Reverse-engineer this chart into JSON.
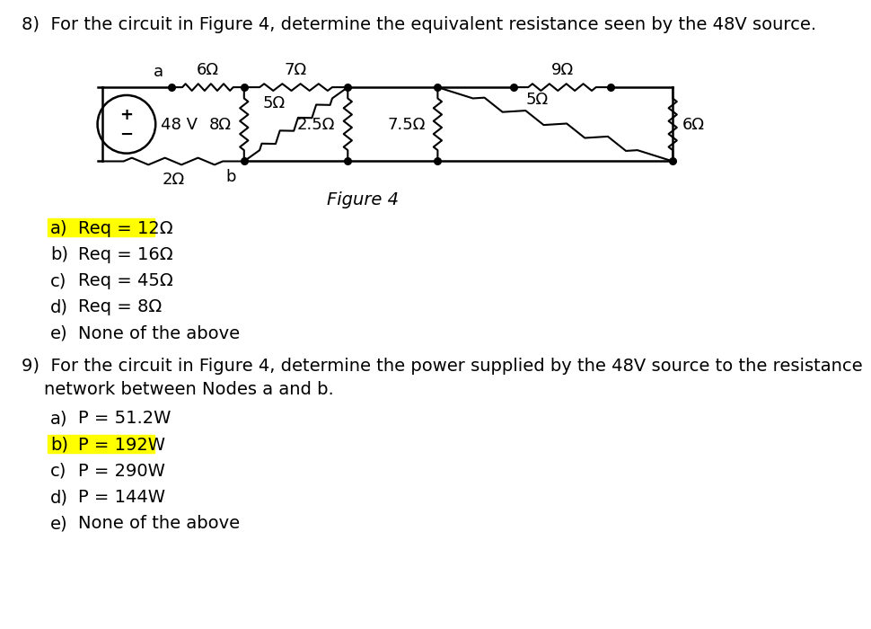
{
  "title_q8": "8)  For the circuit in Figure 4, determine the equivalent resistance seen by the 48V source.",
  "title_q9_line1": "9)  For the circuit in Figure 4, determine the power supplied by the 48V source to the resistance",
  "title_q9_line2": "    network between Nodes a and b.",
  "figure_caption": "Figure 4",
  "q8_options": [
    {
      "label": "a)",
      "text": "Req = 12Ω",
      "highlight": true
    },
    {
      "label": "b)",
      "text": "Req = 16Ω",
      "highlight": false
    },
    {
      "label": "c)",
      "text": "Req = 45Ω",
      "highlight": false
    },
    {
      "label": "d)",
      "text": "Req = 8Ω",
      "highlight": false
    },
    {
      "label": "e)",
      "text": "None of the above",
      "highlight": false
    }
  ],
  "q9_options": [
    {
      "label": "a)",
      "text": "P = 51.2W",
      "highlight": false
    },
    {
      "label": "b)",
      "text": "P = 192W",
      "highlight": true
    },
    {
      "label": "c)",
      "text": "P = 290W",
      "highlight": false
    },
    {
      "label": "d)",
      "text": "P = 144W",
      "highlight": false
    },
    {
      "label": "e)",
      "text": "None of the above",
      "highlight": false
    }
  ],
  "background_color": "#ffffff",
  "highlight_color": "#ffff00",
  "text_color": "#000000",
  "font_size_title": 14,
  "font_size_body": 14,
  "font_size_circuit": 13
}
